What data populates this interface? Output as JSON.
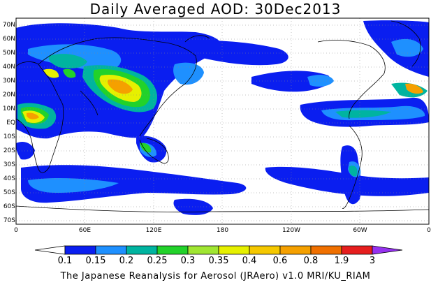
{
  "title": "Daily Averaged AOD: 30Dec2013",
  "footer": "The Japanese Reanalysis for Aerosol (JRAero) v1.0 MRI/KU_RIAM",
  "lat_labels": [
    "70N",
    "60N",
    "50N",
    "40N",
    "30N",
    "20N",
    "10N",
    "EQ",
    "10S",
    "20S",
    "30S",
    "40S",
    "50S",
    "60S",
    "70S"
  ],
  "lon_labels": [
    "0",
    "60E",
    "120E",
    "180",
    "120W",
    "60W",
    "0"
  ],
  "colorbar": {
    "levels": [
      "0.1",
      "0.15",
      "0.2",
      "0.25",
      "0.3",
      "0.35",
      "0.4",
      "0.6",
      "0.8",
      "1.9",
      "3"
    ],
    "colors": [
      "#ffffff",
      "#0a1ef0",
      "#1e90ff",
      "#00b4a0",
      "#22d22a",
      "#a0e632",
      "#e6f000",
      "#f5c800",
      "#f5a000",
      "#f07000",
      "#e61e1e",
      "#9632f0"
    ]
  },
  "map_extent": {
    "lon_min": 0,
    "lon_max": 360,
    "lat_min": -75,
    "lat_max": 75
  },
  "background_color": "#ffffff",
  "coastline_color": "#000000"
}
